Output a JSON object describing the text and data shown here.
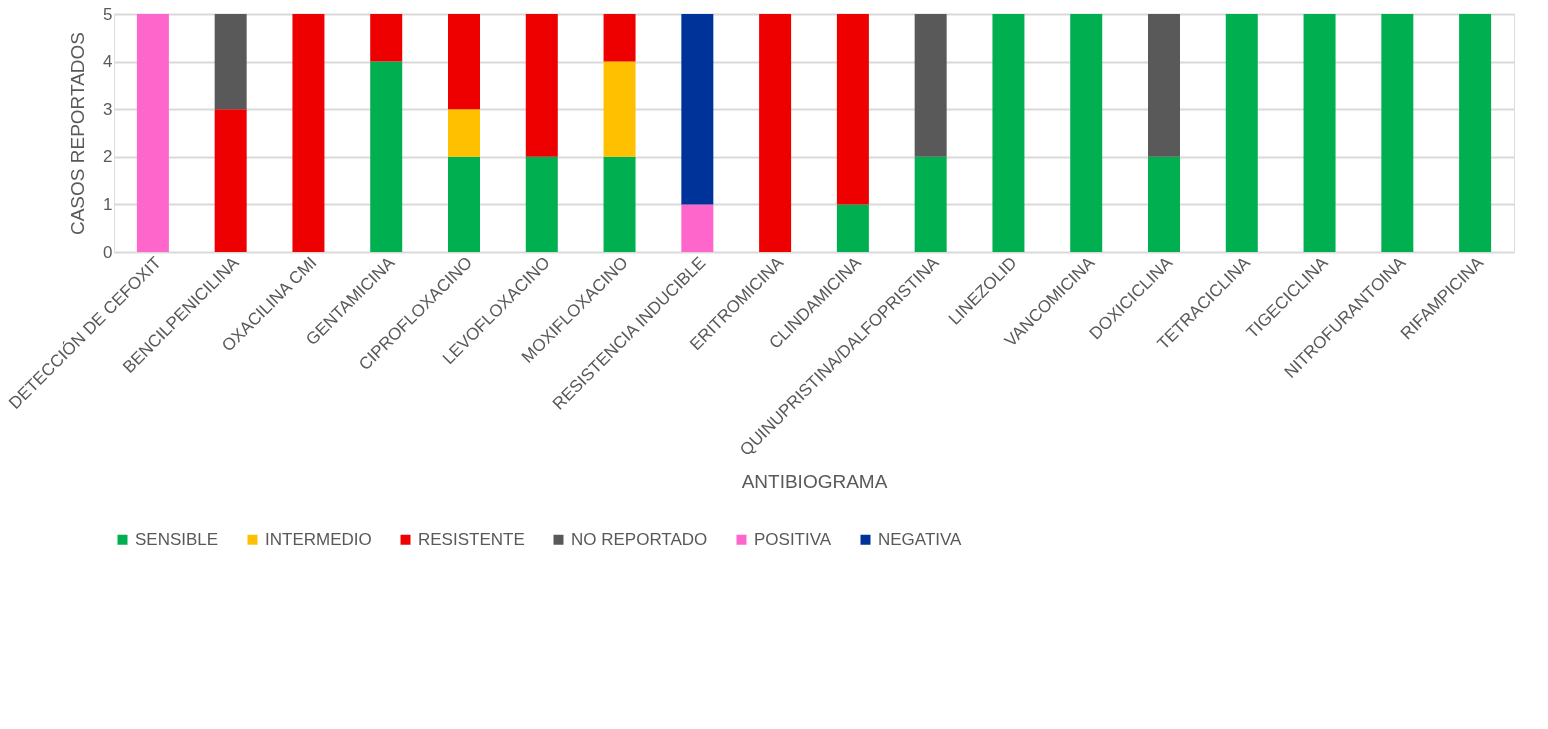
{
  "chart_data": {
    "type": "bar",
    "stacked": true,
    "xlabel": "ANTIBIOGRAMA",
    "ylabel": "CASOS REPORTADOS",
    "categories": [
      "DETECCIÓN DE CEFOXIT",
      "BENCILPENICILINA",
      "OXACILINA CMI",
      "GENTAMICINA",
      "CIPROFLOXACINO",
      "LEVOFLOXACINO",
      "MOXIFLOXACINO",
      "RESISTENCIA INDUCIBLE",
      "ERITROMICINA",
      "CLINDAMICINA",
      "QUINUPRISTINA/DALFOPRISTINA",
      "LINEZOLID",
      "VANCOMICINA",
      "DOXICICLINA",
      "TETRACICLINA",
      "TIGECICLINA",
      "NITROFURANTOINA",
      "RIFAMPICINA"
    ],
    "series": [
      {
        "name": "SENSIBLE",
        "color": "#00b050",
        "values": [
          null,
          null,
          null,
          4,
          2,
          2,
          2,
          null,
          null,
          1,
          2,
          5,
          5,
          2,
          5,
          5,
          5,
          5
        ]
      },
      {
        "name": "INTERMEDIO",
        "color": "#ffc000",
        "values": [
          null,
          null,
          null,
          null,
          1,
          null,
          2,
          null,
          null,
          null,
          null,
          null,
          null,
          null,
          null,
          null,
          null,
          null
        ]
      },
      {
        "name": "RESISTENTE",
        "color": "#ee0000",
        "values": [
          null,
          3,
          5,
          1,
          2,
          3,
          1,
          null,
          5,
          4,
          null,
          null,
          null,
          null,
          null,
          null,
          null,
          null
        ]
      },
      {
        "name": "NO REPORTADO",
        "color": "#595959",
        "values": [
          null,
          2,
          null,
          null,
          null,
          null,
          null,
          null,
          null,
          null,
          3,
          null,
          null,
          3,
          null,
          null,
          null,
          null
        ]
      },
      {
        "name": "POSITIVA",
        "color": "#ff66cc",
        "values": [
          5,
          null,
          null,
          null,
          null,
          null,
          null,
          1,
          null,
          null,
          null,
          null,
          null,
          null,
          null,
          null,
          null,
          null
        ]
      },
      {
        "name": "NEGATIVA",
        "color": "#003399",
        "values": [
          null,
          null,
          null,
          null,
          null,
          null,
          null,
          4,
          null,
          null,
          null,
          null,
          null,
          null,
          null,
          null,
          null,
          null
        ]
      }
    ],
    "ylim": [
      0,
      5
    ],
    "yticks": [
      0,
      1,
      2,
      3,
      4,
      5
    ],
    "grid": "y",
    "legend": "bottom"
  }
}
